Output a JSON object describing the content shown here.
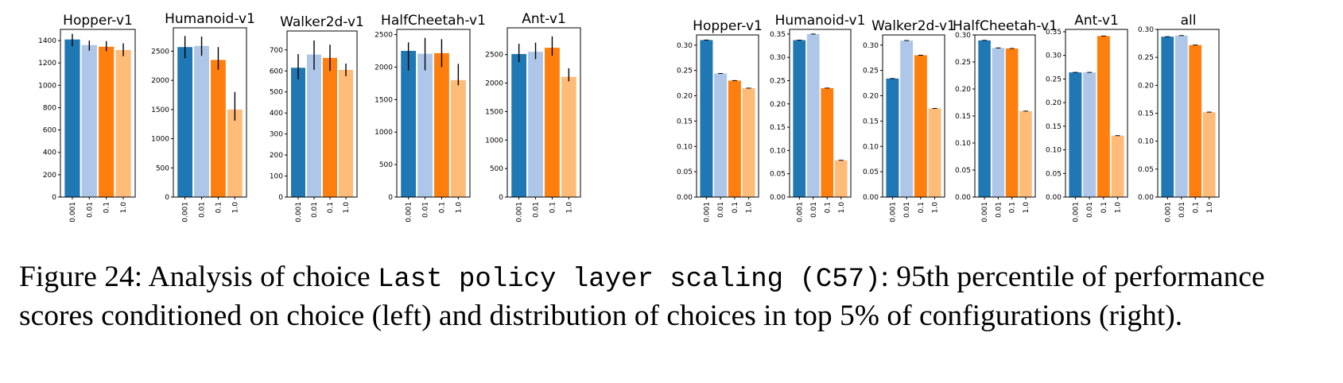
{
  "colors": [
    "#1f77b4",
    "#aec7e8",
    "#ff7f0e",
    "#ffbb78"
  ],
  "chart_data": [
    {
      "type": "bar",
      "title": "Hopper-v1",
      "categories": [
        "0.001",
        "0.01",
        "0.1",
        "1.0"
      ],
      "values": [
        1410,
        1360,
        1345,
        1315
      ],
      "error_bars": [
        [
          1350,
          1460
        ],
        [
          1310,
          1400
        ],
        [
          1305,
          1395
        ],
        [
          1260,
          1375
        ]
      ],
      "ylim": [
        0,
        1500
      ],
      "yticks": [
        0,
        200,
        400,
        600,
        800,
        1000,
        1200,
        1400
      ]
    },
    {
      "type": "bar",
      "title": "Humanoid-v1",
      "categories": [
        "0.001",
        "0.01",
        "0.1",
        "1.0"
      ],
      "values": [
        2570,
        2590,
        2350,
        1500
      ],
      "error_bars": [
        [
          2380,
          2760
        ],
        [
          2420,
          2750
        ],
        [
          2180,
          2570
        ],
        [
          1310,
          1800
        ]
      ],
      "ylim": [
        0,
        2900
      ],
      "yticks": [
        0,
        500,
        1000,
        1500,
        2000,
        2500
      ]
    },
    {
      "type": "bar",
      "title": "Walker2d-v1",
      "categories": [
        "0.001",
        "0.01",
        "0.1",
        "1.0"
      ],
      "values": [
        615,
        678,
        662,
        605
      ],
      "error_bars": [
        [
          560,
          680
        ],
        [
          605,
          745
        ],
        [
          600,
          725
        ],
        [
          575,
          635
        ]
      ],
      "ylim": [
        0,
        790
      ],
      "yticks": [
        0,
        100,
        200,
        300,
        400,
        500,
        600,
        700
      ]
    },
    {
      "type": "bar",
      "title": "HalfCheetah-v1",
      "categories": [
        "0.001",
        "0.01",
        "0.1",
        "1.0"
      ],
      "values": [
        2250,
        2205,
        2215,
        1800
      ],
      "error_bars": [
        [
          1950,
          2380
        ],
        [
          1950,
          2450
        ],
        [
          2000,
          2430
        ],
        [
          1720,
          2050
        ]
      ],
      "ylim": [
        0,
        2580
      ],
      "yticks": [
        0,
        500,
        1000,
        1500,
        2000,
        2500
      ]
    },
    {
      "type": "bar",
      "title": "Ant-v1",
      "categories": [
        "0.001",
        "0.01",
        "0.1",
        "1.0"
      ],
      "values": [
        2510,
        2550,
        2620,
        2110
      ],
      "error_bars": [
        [
          2370,
          2690
        ],
        [
          2420,
          2710
        ],
        [
          2480,
          2820
        ],
        [
          2030,
          2260
        ]
      ],
      "ylim": [
        0,
        2970
      ],
      "yticks": [
        0,
        500,
        1000,
        1500,
        2000,
        2500
      ]
    },
    {
      "type": "bar",
      "title": "Hopper-v1",
      "categories": [
        "0.001",
        "0.01",
        "0.1",
        "1.0"
      ],
      "values": [
        0.31,
        0.244,
        0.23,
        0.215
      ],
      "ylim": [
        0,
        0.32
      ],
      "yticks": [
        "0.00",
        "0.05",
        "0.10",
        "0.15",
        "0.20",
        "0.25",
        "0.30"
      ]
    },
    {
      "type": "bar",
      "title": "Humanoid-v1",
      "categories": [
        "0.001",
        "0.01",
        "0.1",
        "1.0"
      ],
      "values": [
        0.337,
        0.35,
        0.234,
        0.079
      ],
      "ylim": [
        0,
        0.36
      ],
      "yticks": [
        "0.00",
        "0.05",
        "0.10",
        "0.15",
        "0.20",
        "0.25",
        "0.30",
        "0.35"
      ]
    },
    {
      "type": "bar",
      "title": "Walker2d-v1",
      "categories": [
        "0.001",
        "0.01",
        "0.1",
        "1.0"
      ],
      "values": [
        0.234,
        0.309,
        0.28,
        0.175
      ],
      "ylim": [
        0,
        0.32
      ],
      "yticks": [
        "0.00",
        "0.05",
        "0.10",
        "0.15",
        "0.20",
        "0.25",
        "0.30"
      ]
    },
    {
      "type": "bar",
      "title": "HalfCheetah-v1",
      "categories": [
        "0.001",
        "0.01",
        "0.1",
        "1.0"
      ],
      "values": [
        0.29,
        0.276,
        0.275,
        0.159
      ],
      "ylim": [
        0,
        0.3
      ],
      "yticks": [
        "0.00",
        "0.05",
        "0.10",
        "0.15",
        "0.20",
        "0.25",
        "0.30"
      ]
    },
    {
      "type": "bar",
      "title": "Ant-v1",
      "categories": [
        "0.001",
        "0.01",
        "0.1",
        "1.0"
      ],
      "values": [
        0.264,
        0.264,
        0.341,
        0.13
      ],
      "ylim": [
        0,
        0.355
      ],
      "yticks": [
        "0.00",
        "0.05",
        "0.10",
        "0.15",
        "0.20",
        "0.25",
        "0.30",
        "0.35"
      ]
    },
    {
      "type": "bar",
      "title": "all",
      "categories": [
        "0.001",
        "0.01",
        "0.1",
        "1.0"
      ],
      "values": [
        0.287,
        0.289,
        0.272,
        0.152
      ],
      "ylim": [
        0,
        0.3
      ],
      "yticks": [
        "0.00",
        "0.05",
        "0.10",
        "0.15",
        "0.20",
        "0.25",
        "0.30"
      ]
    }
  ],
  "caption": {
    "prefix": "Figure 24: Analysis of choice ",
    "code": "Last policy layer scaling (C57)",
    "suffix": ": 95th percentile of performance scores conditioned on choice (left) and distribution of choices in top 5% of configurations (right)."
  }
}
